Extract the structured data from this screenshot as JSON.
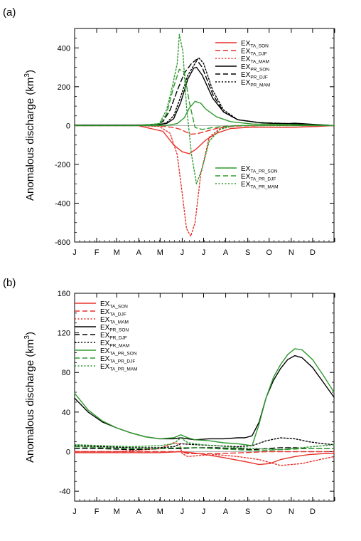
{
  "months": [
    "J",
    "F",
    "M",
    "A",
    "M",
    "J",
    "J",
    "A",
    "S",
    "O",
    "N",
    "D"
  ],
  "colors": {
    "ta": "#e8302a",
    "pr": "#000000",
    "tapr": "#2e9a2e"
  },
  "chart_data": [
    {
      "panel_label": "(a)",
      "type": "line",
      "ylabel": "Anomalous discharge (km",
      "ylabel_sup": "3",
      "ylabel_close": ")",
      "ylim": [
        -600,
        500
      ],
      "yticks": [
        -600,
        -400,
        -200,
        0,
        200,
        400
      ],
      "x_unit": "day of year",
      "xlim": [
        1,
        365
      ],
      "legend_groups": [
        "top-right (TA, PR series)",
        "lower-right (TA_PR series)"
      ],
      "series": [
        {
          "name": "EX",
          "sub": "TA_SON",
          "color": "ta",
          "dash": "solid",
          "x": [
            1,
            90,
            125,
            140,
            152,
            162,
            172,
            185,
            200,
            220,
            250,
            300,
            340,
            365
          ],
          "y": [
            0,
            0,
            -30,
            -100,
            -135,
            -145,
            -120,
            -75,
            -40,
            -15,
            -8,
            -10,
            -5,
            0
          ]
        },
        {
          "name": "EX",
          "sub": "TA_DJF",
          "color": "ta",
          "dash": "dashed",
          "x": [
            1,
            90,
            120,
            140,
            150,
            158,
            165,
            175,
            190,
            205,
            225,
            260,
            365
          ],
          "y": [
            0,
            0,
            -2,
            -10,
            -20,
            -35,
            -45,
            -40,
            -25,
            -10,
            -3,
            0,
            0
          ]
        },
        {
          "name": "EX",
          "sub": "TA_MAM",
          "color": "ta",
          "dash": "dotted",
          "x": [
            1,
            90,
            120,
            135,
            145,
            152,
            158,
            164,
            170,
            178,
            190,
            205,
            225,
            250,
            365
          ],
          "y": [
            0,
            0,
            -5,
            -40,
            -150,
            -350,
            -530,
            -570,
            -500,
            -250,
            -60,
            -15,
            0,
            0,
            0
          ]
        },
        {
          "name": "EX",
          "sub": "PR_SON",
          "color": "pr",
          "dash": "solid",
          "x": [
            1,
            90,
            120,
            130,
            140,
            150,
            160,
            168,
            172,
            180,
            195,
            210,
            230,
            260,
            290,
            310,
            340,
            365
          ],
          "y": [
            2,
            2,
            5,
            10,
            35,
            120,
            240,
            295,
            300,
            260,
            140,
            70,
            30,
            15,
            8,
            12,
            5,
            0
          ]
        },
        {
          "name": "EX",
          "sub": "PR_DJF",
          "color": "pr",
          "dash": "dashed",
          "x": [
            1,
            90,
            115,
            125,
            135,
            145,
            155,
            165,
            172,
            180,
            195,
            210,
            230,
            260,
            300,
            365
          ],
          "y": [
            2,
            2,
            5,
            20,
            80,
            180,
            270,
            320,
            340,
            300,
            160,
            70,
            30,
            15,
            10,
            0
          ]
        },
        {
          "name": "EX",
          "sub": "PR_MAM",
          "color": "pr",
          "dash": "dotted",
          "x": [
            1,
            90,
            120,
            130,
            140,
            150,
            160,
            170,
            175,
            182,
            195,
            210,
            230,
            260,
            300,
            365
          ],
          "y": [
            2,
            2,
            5,
            15,
            50,
            150,
            260,
            320,
            350,
            320,
            180,
            80,
            30,
            15,
            10,
            0
          ]
        },
        {
          "name": "EX",
          "sub": "TA_PR_SON",
          "color": "tapr",
          "dash": "solid",
          "x": [
            1,
            90,
            130,
            145,
            155,
            162,
            170,
            178,
            185,
            200,
            220,
            250,
            300,
            340,
            365
          ],
          "y": [
            0,
            0,
            0,
            10,
            40,
            90,
            125,
            115,
            85,
            45,
            20,
            8,
            5,
            2,
            0
          ]
        },
        {
          "name": "EX",
          "sub": "TA_PR_DJF",
          "color": "tapr",
          "dash": "dashed",
          "x": [
            1,
            90,
            120,
            130,
            140,
            148,
            155,
            162,
            170,
            180,
            195,
            215,
            240,
            280,
            365
          ],
          "y": [
            0,
            0,
            5,
            60,
            200,
            290,
            275,
            120,
            -10,
            -20,
            -10,
            -3,
            0,
            0,
            0
          ]
        },
        {
          "name": "EX",
          "sub": "TA_PR_MAM",
          "color": "tapr",
          "dash": "dotted",
          "x": [
            1,
            90,
            120,
            130,
            138,
            145,
            148,
            153,
            158,
            165,
            172,
            180,
            190,
            205,
            225,
            260,
            365
          ],
          "y": [
            0,
            0,
            10,
            80,
            200,
            320,
            470,
            380,
            100,
            -150,
            -300,
            -220,
            -80,
            -20,
            0,
            0,
            0
          ]
        }
      ]
    },
    {
      "panel_label": "(b)",
      "type": "line",
      "ylabel": "Anomalous discharge (km",
      "ylabel_sup": "3",
      "ylabel_close": ")",
      "ylim": [
        -50,
        160
      ],
      "yticks": [
        -40,
        0,
        40,
        80,
        120,
        160
      ],
      "x_unit": "day of year",
      "xlim": [
        1,
        365
      ],
      "legend_groups": [
        "top-left (all series)"
      ],
      "series": [
        {
          "name": "EX",
          "sub": "TA_SON",
          "color": "ta",
          "dash": "solid",
          "x": [
            1,
            60,
            120,
            150,
            165,
            185,
            210,
            240,
            260,
            275,
            290,
            310,
            330,
            350,
            365
          ],
          "y": [
            -1,
            -1,
            -1,
            0,
            -1,
            -3,
            -6,
            -10,
            -13,
            -12,
            -8,
            -5,
            -3,
            -2,
            -2
          ]
        },
        {
          "name": "EX",
          "sub": "TA_DJF",
          "color": "ta",
          "dash": "dashed",
          "x": [
            1,
            60,
            120,
            150,
            160,
            200,
            240,
            270,
            300,
            330,
            365
          ],
          "y": [
            0,
            0,
            0,
            0,
            -2,
            -2,
            -1,
            0,
            0,
            0,
            0
          ]
        },
        {
          "name": "EX",
          "sub": "TA_MAM",
          "color": "ta",
          "dash": "dotted",
          "x": [
            1,
            60,
            120,
            140,
            148,
            152,
            160,
            175,
            200,
            230,
            260,
            290,
            320,
            345,
            365
          ],
          "y": [
            0,
            0,
            3,
            9,
            8,
            -2,
            -5,
            -4,
            -3,
            -5,
            -8,
            -14,
            -12,
            -8,
            -5
          ]
        },
        {
          "name": "EX",
          "sub": "PR_SON",
          "color": "pr",
          "dash": "solid",
          "x": [
            1,
            20,
            40,
            60,
            80,
            100,
            120,
            140,
            150,
            160,
            170,
            190,
            210,
            230,
            240,
            250,
            260,
            270,
            280,
            290,
            300,
            310,
            320,
            335,
            350,
            365
          ],
          "y": [
            54,
            40,
            30,
            24,
            19,
            15,
            13,
            13,
            14,
            13,
            12,
            13,
            13,
            14,
            14,
            16,
            30,
            55,
            72,
            84,
            93,
            97,
            95,
            85,
            70,
            55
          ]
        },
        {
          "name": "EX",
          "sub": "PR_DJF",
          "color": "pr",
          "dash": "dashed",
          "x": [
            1,
            40,
            80,
            120,
            150,
            170,
            200,
            230,
            250,
            270,
            290,
            310,
            330,
            350,
            365
          ],
          "y": [
            3,
            3,
            2,
            3,
            3,
            4,
            4,
            3,
            2,
            3,
            4,
            4,
            3,
            3,
            3
          ]
        },
        {
          "name": "EX",
          "sub": "PR_MAM",
          "color": "pr",
          "dash": "dotted",
          "x": [
            1,
            40,
            80,
            120,
            140,
            150,
            170,
            200,
            230,
            250,
            270,
            290,
            310,
            330,
            350,
            365
          ],
          "y": [
            6,
            5,
            4,
            4,
            5,
            8,
            7,
            6,
            5,
            6,
            11,
            14,
            13,
            10,
            8,
            7
          ]
        },
        {
          "name": "EX",
          "sub": "TA_PR_SON",
          "color": "tapr",
          "dash": "solid",
          "x": [
            1,
            20,
            40,
            60,
            80,
            100,
            120,
            140,
            150,
            160,
            170,
            190,
            210,
            230,
            240,
            250,
            260,
            270,
            280,
            290,
            300,
            310,
            320,
            335,
            350,
            365
          ],
          "y": [
            59,
            42,
            31,
            24,
            19,
            15,
            13,
            14,
            17,
            14,
            12,
            11,
            9,
            8,
            7,
            6,
            28,
            55,
            75,
            88,
            98,
            104,
            103,
            93,
            77,
            60
          ]
        },
        {
          "name": "EX",
          "sub": "TA_PR_DJF",
          "color": "tapr",
          "dash": "dashed",
          "x": [
            1,
            40,
            80,
            120,
            150,
            170,
            200,
            230,
            260,
            290,
            320,
            350,
            365
          ],
          "y": [
            5,
            4,
            3,
            3,
            4,
            4,
            3,
            2,
            1,
            2,
            3,
            3,
            3
          ]
        },
        {
          "name": "EX",
          "sub": "TA_PR_MAM",
          "color": "tapr",
          "dash": "dotted",
          "x": [
            1,
            40,
            80,
            120,
            140,
            150,
            160,
            180,
            200,
            230,
            260,
            290,
            320,
            350,
            365
          ],
          "y": [
            7,
            6,
            5,
            6,
            8,
            14,
            9,
            7,
            6,
            4,
            3,
            2,
            4,
            6,
            7
          ]
        }
      ]
    }
  ]
}
